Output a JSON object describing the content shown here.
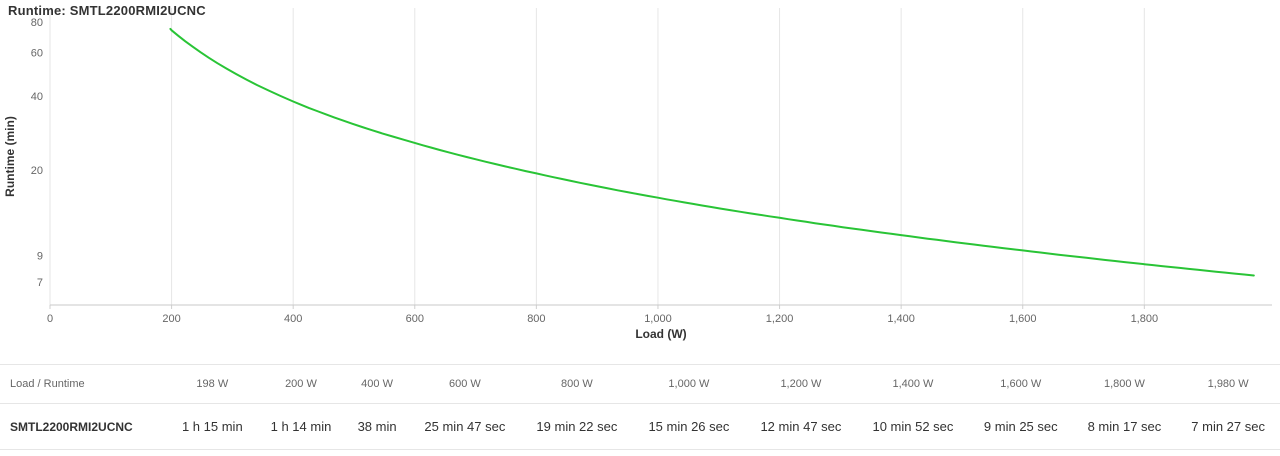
{
  "colors": {
    "line": "#29c436",
    "grid": "#e6e6e6",
    "axis_line": "#c9c9c9",
    "tick": "#cfcfcf",
    "tick_text": "#666666",
    "axis_title_text": "#333333",
    "title_text": "#333333"
  },
  "chart_data": {
    "type": "line",
    "title": "Runtime: SMTL2200RMI2UCNC",
    "xlabel": "Load (W)",
    "ylabel": "Runtime (min)",
    "y_scale": "log",
    "grid": "vertical",
    "legend": "none",
    "xlim": [
      0,
      2010
    ],
    "ylim": [
      5.65,
      91.2
    ],
    "x_ticks": [
      0,
      200,
      400,
      600,
      800,
      1000,
      1200,
      1400,
      1600,
      1800
    ],
    "x_tick_labels": [
      "0",
      "200",
      "400",
      "600",
      "800",
      "1,000",
      "1,200",
      "1,400",
      "1,600",
      "1,800"
    ],
    "y_ticks": [
      7,
      9,
      20,
      40,
      60,
      80
    ],
    "y_tick_labels": [
      "7",
      "9",
      "20",
      "40",
      "60",
      "80"
    ],
    "series": [
      {
        "name": "SMTL2200RMI2UCNC",
        "x": [
          198,
          200,
          400,
          600,
          800,
          1000,
          1200,
          1400,
          1600,
          1800,
          1980
        ],
        "y": [
          75,
          74,
          38,
          25.78,
          19.37,
          15.43,
          12.78,
          10.87,
          9.42,
          8.28,
          7.45
        ]
      }
    ]
  },
  "table": {
    "header": [
      "Load / Runtime",
      "198 W",
      "200 W",
      "400 W",
      "600 W",
      "800 W",
      "1,000 W",
      "1,200 W",
      "1,400 W",
      "1,600 W",
      "1,800 W",
      "1,980 W"
    ],
    "rows": [
      {
        "label": "SMTL2200RMI2UCNC",
        "values": [
          "1 h 15 min",
          "1 h 14 min",
          "38 min",
          "25 min 47 sec",
          "19 min 22 sec",
          "15 min 26 sec",
          "12 min 47 sec",
          "10 min 52 sec",
          "9 min 25 sec",
          "8 min 17 sec",
          "7 min 27 sec"
        ]
      }
    ]
  }
}
